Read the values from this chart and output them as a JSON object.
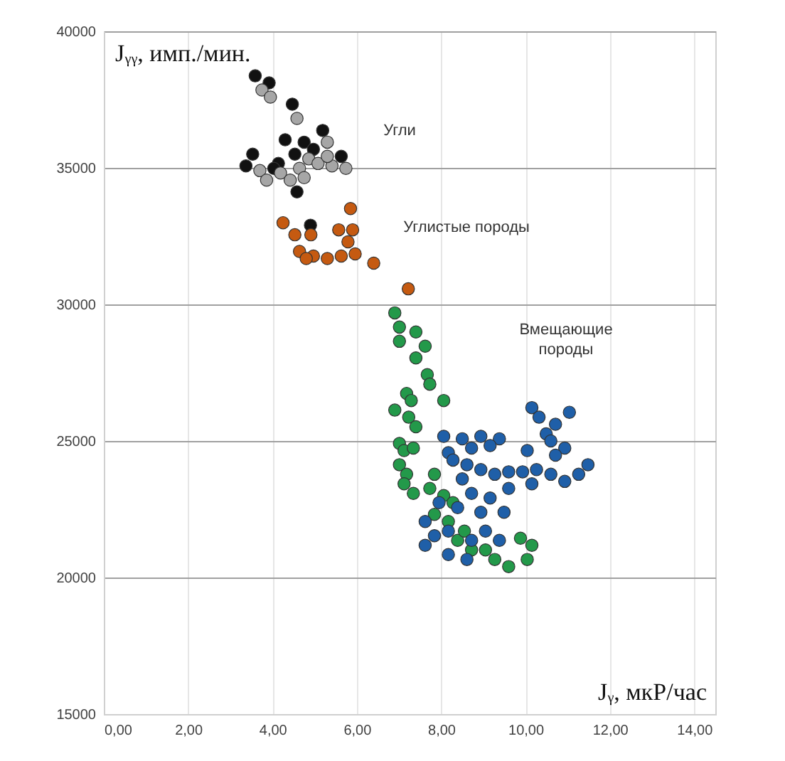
{
  "chart_data": {
    "type": "scatter",
    "xlabel": "Jᵧ, мкР/час",
    "ylabel": "Jᵧᵧ, имп./мин.",
    "xlim": [
      0,
      14.5
    ],
    "ylim": [
      15000,
      40000
    ],
    "xticks": [
      {
        "value": 0,
        "label": "0,00"
      },
      {
        "value": 2,
        "label": "2,00"
      },
      {
        "value": 4,
        "label": "4,00"
      },
      {
        "value": 6,
        "label": "6,00"
      },
      {
        "value": 8,
        "label": "8,00"
      },
      {
        "value": 10,
        "label": "10,00"
      },
      {
        "value": 12,
        "label": "12,00"
      },
      {
        "value": 14,
        "label": "14,00"
      }
    ],
    "yticks": [
      15000,
      20000,
      25000,
      30000,
      35000,
      40000
    ],
    "grid": true,
    "marker": "circle",
    "annotations": [
      "Угли",
      "Углистые породы",
      "Вмещающие\nпороды"
    ],
    "series": [
      {
        "color": "#111111",
        "x": [
          3.59,
          3.92,
          4.47,
          5.19,
          4.3,
          4.75,
          3.53,
          4.14,
          4.53,
          5.63,
          3.37,
          4.03,
          4.97,
          4.58,
          4.9
        ],
        "values": [
          38370,
          38110,
          37330,
          36370,
          36030,
          35940,
          35500,
          35160,
          35500,
          35420,
          35070,
          34980,
          35680,
          34120,
          32900
        ]
      },
      {
        "color": "#a6a6a6",
        "x": [
          3.75,
          3.95,
          4.58,
          5.3,
          4.86,
          3.7,
          4.19,
          4.64,
          5.08,
          5.41,
          5.74,
          3.86,
          4.42,
          4.75,
          5.3
        ],
        "values": [
          37850,
          37590,
          36810,
          35940,
          35330,
          34900,
          34810,
          34980,
          35160,
          35070,
          34980,
          34550,
          34550,
          34640,
          35420
        ]
      },
      {
        "color": "#c55a11",
        "x": [
          5.85,
          4.25,
          4.53,
          4.91,
          5.57,
          5.9,
          4.64,
          4.97,
          5.3,
          5.63,
          5.96,
          4.8,
          6.4,
          5.79,
          7.22
        ],
        "values": [
          33510,
          32990,
          32550,
          32550,
          32730,
          32730,
          31940,
          31770,
          31680,
          31770,
          31850,
          31680,
          31510,
          32290,
          30570
        ]
      },
      {
        "color": "#23994a",
        "x": [
          6.9,
          7.01,
          7.01,
          7.4,
          7.62,
          7.4,
          7.67,
          7.73,
          7.18,
          7.29,
          6.9,
          8.06,
          7.23,
          7.4,
          7.01,
          7.12,
          7.34,
          7.01,
          7.18,
          7.12,
          7.34,
          7.84,
          7.73,
          8.06,
          8.28,
          7.84,
          8.17,
          null,
          null,
          8.39,
          8.72,
          9.05,
          9.27,
          9.6,
          9.88,
          10.15,
          10.04,
          8.55
        ],
        "values": [
          29690,
          29170,
          28650,
          28990,
          28470,
          28040,
          27430,
          27080,
          26740,
          26480,
          26130,
          26480,
          25870,
          25520,
          24910,
          24650,
          24740,
          24130,
          23780,
          23430,
          23080,
          23780,
          23260,
          23000,
          22740,
          22310,
          22050,
          null,
          null,
          21360,
          21010,
          21010,
          20660,
          20400,
          21440,
          21180,
          20660,
          21700
        ]
      },
      {
        "color": "#1f5fa8",
        "x": [
          8.06,
          8.5,
          8.94,
          9.38,
          8.17,
          8.72,
          9.16,
          10.15,
          10.32,
          11.04,
          10.71,
          10.49,
          10.6,
          10.93,
          11.48,
          11.26,
          10.93,
          10.6,
          10.26,
          9.93,
          9.6,
          9.27,
          8.94,
          8.61,
          8.28,
          10.04,
          10.15,
          8.5,
          8.72,
          9.16,
          9.49,
          8.94,
          8.39,
          7.95,
          7.62,
          7.84,
          7.62,
          8.17,
          8.72,
          9.05,
          8.17,
          9.38,
          8.61,
          9.6,
          10.71
        ],
        "values": [
          25170,
          25080,
          25170,
          25080,
          24570,
          24740,
          24830,
          26220,
          25870,
          26050,
          25610,
          25260,
          25000,
          24740,
          24130,
          23780,
          23520,
          23780,
          23950,
          23870,
          23870,
          23780,
          23950,
          24130,
          24300,
          24650,
          23430,
          23610,
          23080,
          22910,
          22390,
          22390,
          22560,
          22740,
          22050,
          21530,
          21180,
          20840,
          21360,
          21700,
          21700,
          21360,
          20660,
          23260,
          24480
        ]
      }
    ]
  }
}
